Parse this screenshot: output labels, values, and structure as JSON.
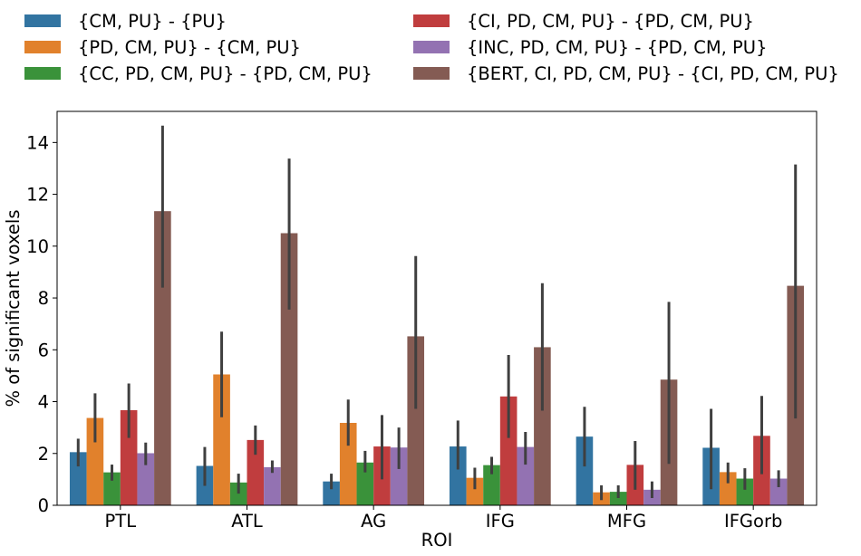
{
  "chart_data": {
    "type": "bar",
    "xlabel": "ROI",
    "ylabel": "% of significant voxels",
    "ylim": [
      0,
      15.2
    ],
    "yticks": [
      0,
      2,
      4,
      6,
      8,
      10,
      12,
      14
    ],
    "grid": false,
    "legend_position": "top, two columns above plot",
    "categories": [
      "PTL",
      "ATL",
      "AG",
      "IFG",
      "MFG",
      "IFGorb"
    ],
    "series": [
      {
        "name": "{CM, PU} - {PU}",
        "color": "#3274a1",
        "values": [
          2.05,
          1.52,
          0.92,
          2.27,
          2.65,
          2.22
        ],
        "err_low": [
          1.5,
          0.75,
          0.62,
          1.38,
          1.5,
          0.62
        ],
        "err_high": [
          2.57,
          2.25,
          1.22,
          3.27,
          3.8,
          3.72
        ]
      },
      {
        "name": "{PD, CM, PU} - {CM, PU}",
        "color": "#e1812c",
        "values": [
          3.37,
          5.05,
          3.18,
          1.06,
          0.5,
          1.28
        ],
        "err_low": [
          2.43,
          3.4,
          2.3,
          0.62,
          0.2,
          0.85
        ],
        "err_high": [
          4.32,
          6.7,
          4.08,
          1.45,
          0.77,
          1.65
        ]
      },
      {
        "name": "{CC, PD, CM, PU} - {PD, CM, PU}",
        "color": "#3a923a",
        "values": [
          1.27,
          0.88,
          1.65,
          1.55,
          0.52,
          1.03
        ],
        "err_low": [
          0.95,
          0.45,
          1.27,
          1.2,
          0.28,
          0.6
        ],
        "err_high": [
          1.57,
          1.22,
          2.1,
          1.87,
          0.77,
          1.43
        ]
      },
      {
        "name": "{CI, PD, CM, PU} - {PD, CM, PU}",
        "color": "#c03d3e",
        "values": [
          3.67,
          2.52,
          2.27,
          4.2,
          1.56,
          2.68
        ],
        "err_low": [
          2.6,
          1.95,
          1.0,
          2.6,
          0.6,
          1.2
        ],
        "err_high": [
          4.7,
          3.08,
          3.48,
          5.8,
          2.48,
          4.22
        ]
      },
      {
        "name": "{INC, PD, CM, PU} - {PD, CM, PU}",
        "color": "#9372b2",
        "values": [
          2.01,
          1.47,
          2.23,
          2.25,
          0.6,
          1.03
        ],
        "err_low": [
          1.55,
          1.25,
          1.4,
          1.57,
          0.28,
          0.7
        ],
        "err_high": [
          2.42,
          1.73,
          3.0,
          2.83,
          0.92,
          1.35
        ]
      },
      {
        "name": "{BERT, CI, PD, CM, PU} - {CI, PD, CM, PU}",
        "color": "#845b53",
        "values": [
          11.35,
          10.5,
          6.52,
          6.1,
          4.85,
          8.47
        ],
        "err_low": [
          8.4,
          7.55,
          3.72,
          3.65,
          1.6,
          3.35
        ],
        "err_high": [
          14.65,
          13.38,
          9.62,
          8.57,
          7.85,
          13.15
        ]
      }
    ]
  }
}
